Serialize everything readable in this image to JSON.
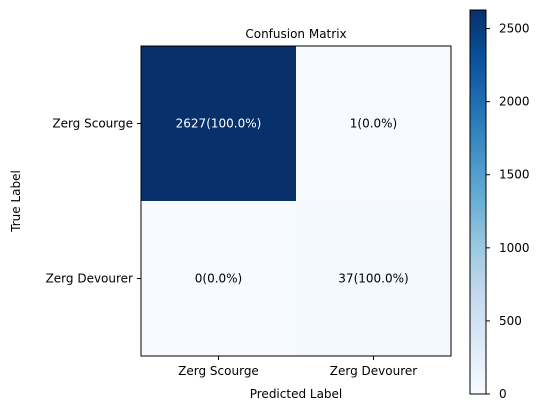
{
  "chart_data": {
    "type": "heatmap",
    "title": "Confusion Matrix",
    "xlabel": "Predicted Label",
    "ylabel": "True Label",
    "x_categories": [
      "Zerg Scourge",
      "Zerg Devourer"
    ],
    "y_categories": [
      "Zerg Scourge",
      "Zerg Devourer"
    ],
    "values": [
      [
        2627,
        1
      ],
      [
        0,
        37
      ]
    ],
    "cell_labels": [
      [
        "2627(100.0%)",
        "1(0.0%)"
      ],
      [
        "0(0.0%)",
        "37(100.0%)"
      ]
    ],
    "colorbar": {
      "range": [
        0,
        2627
      ],
      "ticks": [
        0,
        500,
        1000,
        1500,
        2000,
        2500
      ],
      "tick_labels": [
        "0",
        "500",
        "1000",
        "1500",
        "2000",
        "2500"
      ]
    },
    "colormap": "Blues",
    "colors": {
      "low": "#f7fbff",
      "high": "#08306b",
      "text_light": "#ffffff",
      "text_dark": "#000000"
    }
  }
}
